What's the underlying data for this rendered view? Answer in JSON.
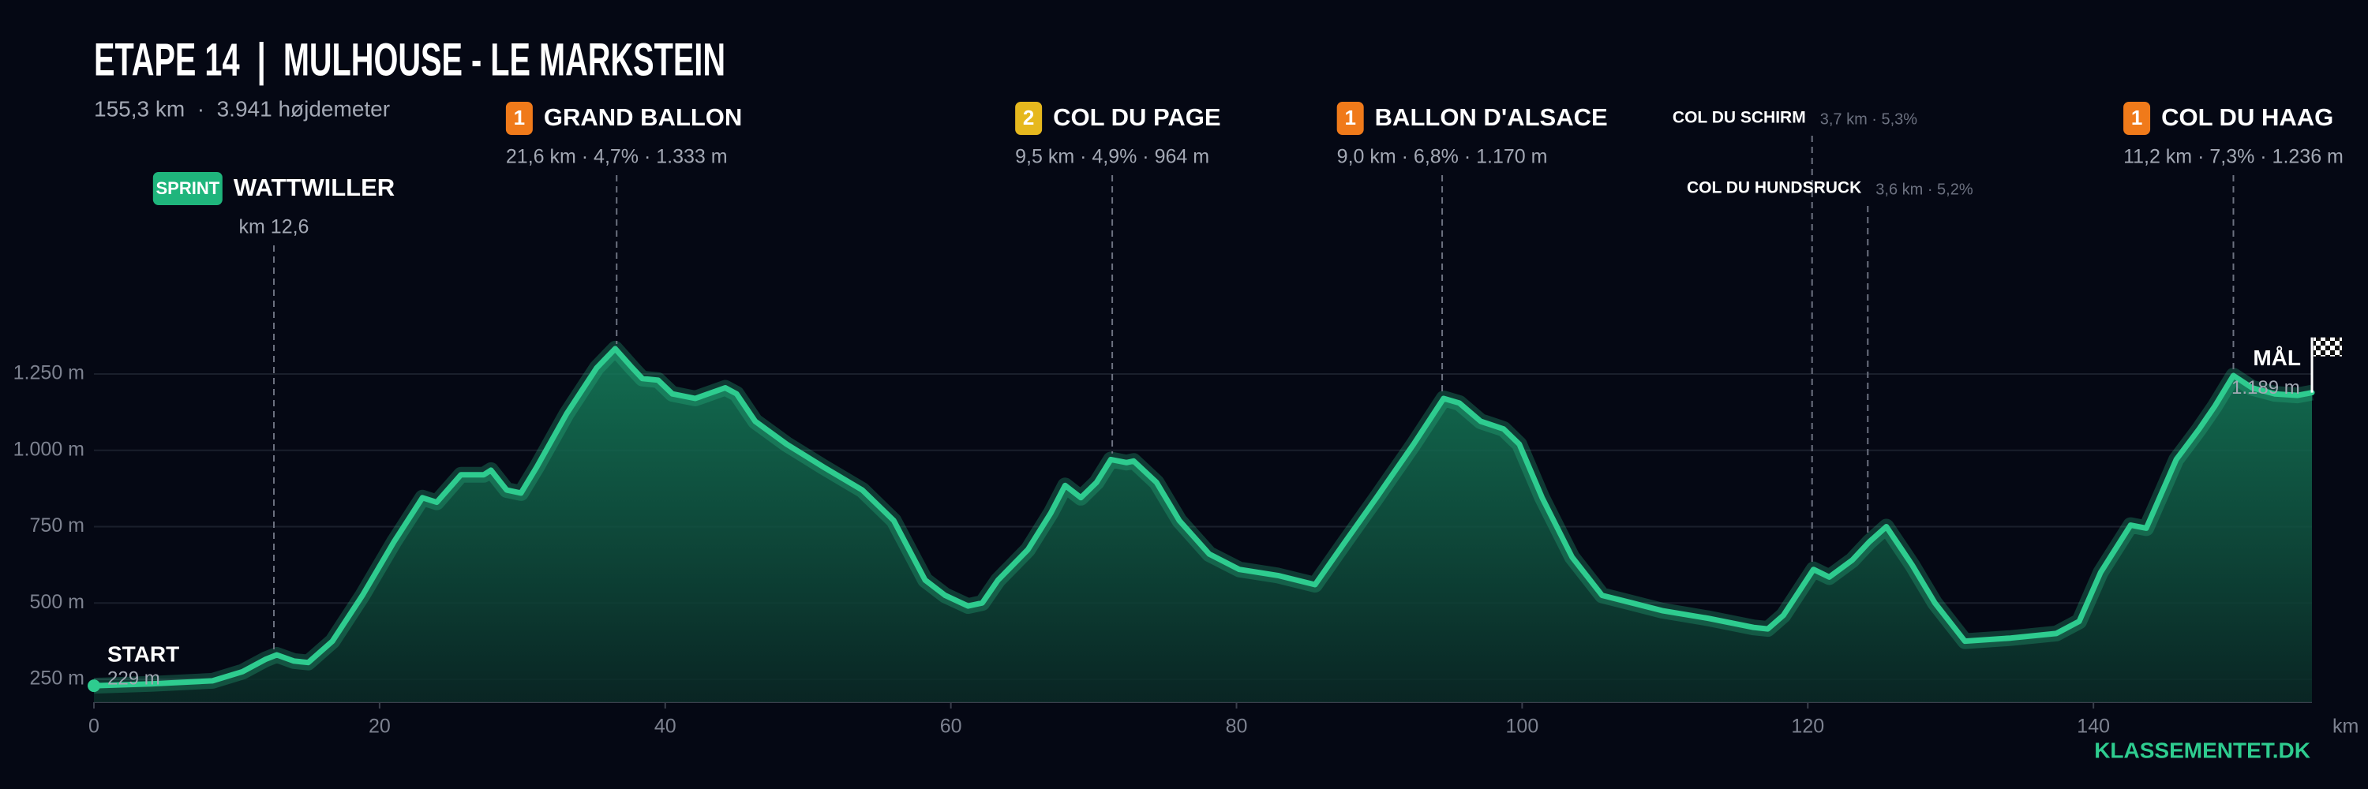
{
  "chart_data": {
    "type": "area",
    "title": "ETAPE 14  |  MULHOUSE - LE MARKSTEIN",
    "subtitle": "155,3 km  ·  3.941 højdemeter",
    "brand": "KLASSEMENTET.DK",
    "xlabel": "km",
    "color": "#2ecc8f",
    "grid": true,
    "xlim": [
      0,
      155.3
    ],
    "xticks": [
      0,
      20,
      40,
      60,
      80,
      100,
      120,
      140
    ],
    "ylim": [
      175,
      1400
    ],
    "yticks": [
      {
        "value": 250,
        "label": "250 m"
      },
      {
        "value": 500,
        "label": "500 m"
      },
      {
        "value": 750,
        "label": "750 m"
      },
      {
        "value": 1000,
        "label": "1.000 m"
      },
      {
        "value": 1250,
        "label": "1.250 m"
      }
    ],
    "x": [
      0,
      4,
      8.3,
      10.4,
      12,
      12.8,
      14,
      15,
      16.7,
      18.8,
      21,
      23,
      24,
      25.7,
      27.3,
      27.8,
      28.9,
      29.9,
      31,
      33.1,
      35.2,
      36.5,
      37.7,
      38.4,
      39.5,
      40.5,
      42.1,
      44.2,
      45,
      46.3,
      48.5,
      51.1,
      53.8,
      56,
      58.2,
      59.6,
      61.2,
      62.2,
      63.3,
      65.4,
      67,
      68,
      69.1,
      70.2,
      71.2,
      72.3,
      72.8,
      74.4,
      76,
      78.1,
      80.2,
      82.9,
      85.5,
      87.6,
      89.8,
      92.4,
      94.5,
      95.6,
      97.1,
      98.7,
      99.8,
      101.4,
      103.5,
      105.6,
      107.7,
      109.8,
      113,
      116.2,
      117.2,
      118.3,
      120.4,
      121.5,
      123.1,
      124.3,
      125.5,
      127.3,
      128.9,
      131,
      134.2,
      137.4,
      139,
      140.5,
      142.6,
      143.7,
      145.8,
      147.4,
      148.5,
      149.8,
      151.1,
      152.7,
      154.3,
      155.3
    ],
    "values": [
      229,
      235,
      245,
      275,
      315,
      330,
      310,
      305,
      375,
      525,
      700,
      845,
      830,
      920,
      920,
      935,
      870,
      860,
      945,
      1120,
      1270,
      1333,
      1270,
      1235,
      1230,
      1185,
      1170,
      1205,
      1185,
      1095,
      1020,
      945,
      870,
      770,
      575,
      525,
      490,
      500,
      575,
      675,
      795,
      885,
      845,
      895,
      970,
      960,
      965,
      895,
      770,
      660,
      610,
      590,
      560,
      700,
      845,
      1020,
      1170,
      1155,
      1095,
      1070,
      1020,
      845,
      650,
      525,
      500,
      475,
      450,
      420,
      415,
      460,
      610,
      585,
      640,
      700,
      750,
      625,
      500,
      375,
      385,
      400,
      440,
      600,
      755,
      745,
      970,
      1070,
      1145,
      1245,
      1205,
      1185,
      1180,
      1189
    ],
    "start": {
      "label": "START",
      "elevation_label": "229 m"
    },
    "finish": {
      "label": "MÅL",
      "elevation_label": "1.189 m"
    },
    "annotations": [
      {
        "x": 12.6,
        "category": "SPRINT",
        "name": "WATTWILLER",
        "stats": "km 12,6"
      },
      {
        "x": 36.6,
        "category": "1",
        "name": "GRAND BALLON",
        "stats": "21,6 km · 4,7% · 1.333 m"
      },
      {
        "x": 71.3,
        "category": "2",
        "name": "COL DU PAGE",
        "stats": "9,5 km · 4,9% · 964 m"
      },
      {
        "x": 94.4,
        "category": "1",
        "name": "BALLON D'ALSACE",
        "stats": "9,0 km · 6,8% · 1.170 m"
      },
      {
        "x": 120.3,
        "name": "COL DU SCHIRM",
        "stats": "3,7 km · 5,3%"
      },
      {
        "x": 124.2,
        "name": "COL DU HUNDSRUCK",
        "stats": "3,6 km · 5,2%"
      },
      {
        "x": 149.8,
        "category": "1",
        "name": "COL DU HAAG",
        "stats": "11,2 km · 7,3% · 1.236 m"
      }
    ]
  }
}
